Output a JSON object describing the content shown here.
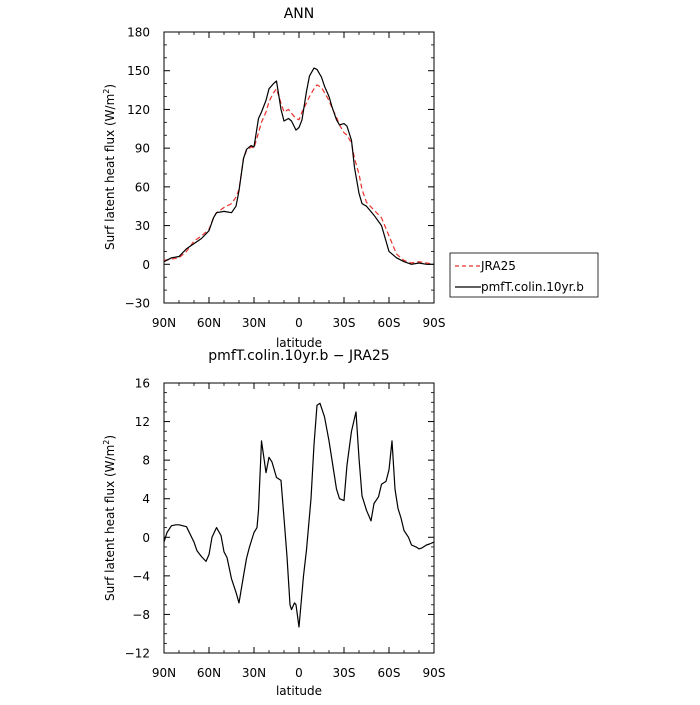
{
  "chart_data": [
    {
      "type": "line",
      "title": "ANN",
      "xlabel": "latitude",
      "ylabel_main": "Surf latent heat flux (W/m",
      "ylabel_sup": "2",
      "ylabel_end": ")",
      "xlim": [
        90,
        -90
      ],
      "ylim": [
        -30,
        180
      ],
      "x_ticks": [
        {
          "value": 90,
          "label": "90N"
        },
        {
          "value": 60,
          "label": "60N"
        },
        {
          "value": 30,
          "label": "30N"
        },
        {
          "value": 0,
          "label": "0"
        },
        {
          "value": -30,
          "label": "30S"
        },
        {
          "value": -60,
          "label": "60S"
        },
        {
          "value": -90,
          "label": "90S"
        }
      ],
      "y_ticks": [
        {
          "value": -30,
          "label": "−30"
        },
        {
          "value": 0,
          "label": "0"
        },
        {
          "value": 30,
          "label": "30"
        },
        {
          "value": 60,
          "label": "60"
        },
        {
          "value": 90,
          "label": "90"
        },
        {
          "value": 120,
          "label": "120"
        },
        {
          "value": 150,
          "label": "150"
        },
        {
          "value": 180,
          "label": "180"
        }
      ],
      "legend_position": "right-outside",
      "series": [
        {
          "name": "JRA25",
          "color": "#e8322c",
          "dash": true,
          "x": [
            90,
            85,
            80,
            75,
            70,
            65,
            60,
            57,
            55,
            50,
            45,
            42,
            40,
            37,
            35,
            32,
            30,
            27,
            25,
            22,
            20,
            17,
            15,
            12,
            10,
            7,
            5,
            2,
            0,
            -2,
            -5,
            -7,
            -10,
            -12,
            -15,
            -17,
            -20,
            -22,
            -25,
            -27,
            -30,
            -32,
            -35,
            -37,
            -40,
            -42,
            -45,
            -50,
            -55,
            -60,
            -65,
            -70,
            -75,
            -80,
            -85,
            -90
          ],
          "y": [
            3,
            4,
            5,
            10,
            18,
            22,
            27,
            36,
            40,
            44,
            47,
            52,
            58,
            82,
            88,
            91,
            90,
            102,
            110,
            118,
            126,
            133,
            136,
            125,
            118,
            120,
            117,
            113,
            112,
            118,
            125,
            130,
            136,
            139,
            137,
            133,
            127,
            121,
            114,
            108,
            102,
            100,
            94,
            82,
            70,
            58,
            48,
            42,
            36,
            22,
            8,
            3,
            1,
            2,
            1,
            0
          ]
        },
        {
          "name": "pmfT.colin.10yr.b",
          "color": "#000000",
          "dash": false,
          "x": [
            90,
            85,
            80,
            75,
            70,
            65,
            60,
            57,
            55,
            50,
            45,
            42,
            40,
            37,
            35,
            32,
            30,
            27,
            25,
            22,
            20,
            17,
            15,
            12,
            10,
            7,
            5,
            2,
            0,
            -2,
            -5,
            -7,
            -10,
            -12,
            -15,
            -17,
            -20,
            -22,
            -25,
            -27,
            -30,
            -32,
            -35,
            -37,
            -40,
            -42,
            -45,
            -50,
            -55,
            -60,
            -65,
            -70,
            -75,
            -80,
            -85,
            -90
          ],
          "y": [
            2,
            5,
            6,
            12,
            16,
            20,
            26,
            36,
            40,
            41,
            40,
            45,
            57,
            82,
            89,
            92,
            91,
            113,
            118,
            127,
            136,
            140,
            142,
            120,
            111,
            113,
            111,
            104,
            106,
            112,
            134,
            146,
            152,
            151,
            145,
            138,
            130,
            122,
            112,
            108,
            109,
            107,
            96,
            75,
            55,
            47,
            45,
            38,
            30,
            10,
            5,
            2,
            0,
            1,
            0,
            0
          ]
        }
      ]
    },
    {
      "type": "line",
      "title": "pmfT.colin.10yr.b  −  JRA25",
      "xlabel": "latitude",
      "ylabel_main": "Surf latent heat flux (W/m",
      "ylabel_sup": "2",
      "ylabel_end": ")",
      "xlim": [
        90,
        -90
      ],
      "ylim": [
        -12,
        16
      ],
      "x_ticks": [
        {
          "value": 90,
          "label": "90N"
        },
        {
          "value": 60,
          "label": "60N"
        },
        {
          "value": 30,
          "label": "30N"
        },
        {
          "value": 0,
          "label": "0"
        },
        {
          "value": -30,
          "label": "30S"
        },
        {
          "value": -60,
          "label": "60S"
        },
        {
          "value": -90,
          "label": "90S"
        }
      ],
      "y_ticks": [
        {
          "value": -12,
          "label": "−12"
        },
        {
          "value": -8,
          "label": "−8"
        },
        {
          "value": -4,
          "label": "−4"
        },
        {
          "value": 0,
          "label": "0"
        },
        {
          "value": 4,
          "label": "4"
        },
        {
          "value": 8,
          "label": "8"
        },
        {
          "value": 12,
          "label": "12"
        },
        {
          "value": 16,
          "label": "16"
        }
      ],
      "series": [
        {
          "color": "#000000",
          "dash": false,
          "x": [
            90,
            88,
            85,
            82,
            80,
            75,
            70,
            68,
            65,
            62,
            60,
            58,
            55,
            52,
            50,
            48,
            45,
            42,
            40,
            37,
            35,
            33,
            30,
            28,
            27,
            25,
            22,
            20,
            18,
            15,
            12,
            10,
            8,
            6,
            5,
            3,
            2,
            0,
            -3,
            -5,
            -8,
            -10,
            -12,
            -14,
            -17,
            -20,
            -22,
            -25,
            -27,
            -30,
            -32,
            -35,
            -38,
            -40,
            -42,
            -45,
            -48,
            -50,
            -53,
            -55,
            -58,
            -60,
            -62,
            -64,
            -66,
            -68,
            -70,
            -73,
            -75,
            -78,
            -80,
            -82,
            -85,
            -87,
            -90
          ],
          "y": [
            -0.5,
            0.5,
            1.2,
            1.3,
            1.3,
            1.1,
            -0.5,
            -1.4,
            -2.0,
            -2.5,
            -1.8,
            0.0,
            1.0,
            0.2,
            -1.5,
            -2.1,
            -4.3,
            -5.7,
            -6.8,
            -4.0,
            -2.2,
            -1.0,
            0.5,
            1.0,
            2.8,
            10.0,
            6.7,
            8.3,
            7.8,
            6.2,
            5.9,
            2.0,
            -2.0,
            -7.0,
            -7.5,
            -6.8,
            -7.0,
            -9.3,
            -4.0,
            -1.3,
            4.0,
            9.6,
            13.7,
            13.9,
            12.5,
            10.0,
            8.0,
            5.0,
            4.0,
            3.8,
            7.5,
            11.0,
            13.0,
            8.2,
            4.3,
            2.8,
            1.7,
            3.5,
            4.2,
            5.5,
            5.8,
            7.0,
            10.0,
            5.0,
            3.0,
            2.0,
            0.7,
            0.0,
            -0.8,
            -1.0,
            -1.2,
            -1.1,
            -0.8,
            -0.7,
            -0.5
          ]
        }
      ]
    }
  ]
}
